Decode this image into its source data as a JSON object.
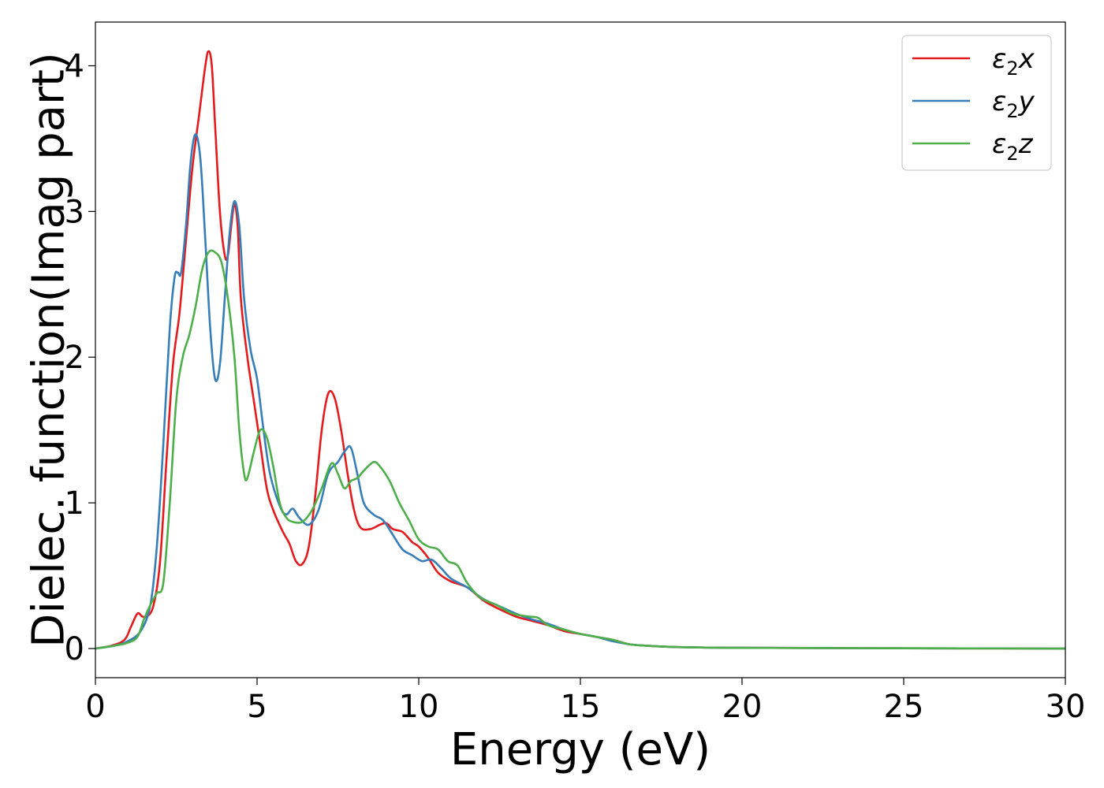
{
  "chart_data": {
    "type": "line",
    "xlabel": "Energy (eV)",
    "ylabel": "Dielec. function(Imag part)",
    "xlim": [
      0,
      30
    ],
    "ylim": [
      -0.2,
      4.3
    ],
    "xticks": [
      0,
      5,
      10,
      15,
      20,
      25,
      30
    ],
    "yticks": [
      0,
      1,
      2,
      3,
      4
    ],
    "grid": false,
    "legend_position": "top-right",
    "series": [
      {
        "name": "ε₂x",
        "label_base": "ε",
        "label_sub": "2",
        "label_suffix": "x",
        "color": "#e41a1c",
        "points": [
          [
            0,
            0
          ],
          [
            0.5,
            0.02
          ],
          [
            0.9,
            0.06
          ],
          [
            1.1,
            0.15
          ],
          [
            1.3,
            0.24
          ],
          [
            1.45,
            0.22
          ],
          [
            1.6,
            0.22
          ],
          [
            1.8,
            0.3
          ],
          [
            2.0,
            0.6
          ],
          [
            2.2,
            1.3
          ],
          [
            2.4,
            1.95
          ],
          [
            2.6,
            2.3
          ],
          [
            2.8,
            2.8
          ],
          [
            3.0,
            3.3
          ],
          [
            3.2,
            3.65
          ],
          [
            3.4,
            4.0
          ],
          [
            3.5,
            4.1
          ],
          [
            3.6,
            4.0
          ],
          [
            3.7,
            3.6
          ],
          [
            3.85,
            3.0
          ],
          [
            4.0,
            2.7
          ],
          [
            4.1,
            2.7
          ],
          [
            4.2,
            2.9
          ],
          [
            4.3,
            3.05
          ],
          [
            4.4,
            2.9
          ],
          [
            4.5,
            2.4
          ],
          [
            4.7,
            2.0
          ],
          [
            4.9,
            1.7
          ],
          [
            5.1,
            1.4
          ],
          [
            5.3,
            1.1
          ],
          [
            5.5,
            0.95
          ],
          [
            5.8,
            0.8
          ],
          [
            6.0,
            0.72
          ],
          [
            6.2,
            0.6
          ],
          [
            6.4,
            0.58
          ],
          [
            6.6,
            0.7
          ],
          [
            6.8,
            1.05
          ],
          [
            7.0,
            1.5
          ],
          [
            7.2,
            1.75
          ],
          [
            7.4,
            1.72
          ],
          [
            7.6,
            1.5
          ],
          [
            7.8,
            1.2
          ],
          [
            8.0,
            0.95
          ],
          [
            8.2,
            0.83
          ],
          [
            8.5,
            0.82
          ],
          [
            8.8,
            0.85
          ],
          [
            9.0,
            0.86
          ],
          [
            9.2,
            0.82
          ],
          [
            9.5,
            0.8
          ],
          [
            9.8,
            0.73
          ],
          [
            10.0,
            0.7
          ],
          [
            10.3,
            0.62
          ],
          [
            10.6,
            0.52
          ],
          [
            11.0,
            0.46
          ],
          [
            11.5,
            0.42
          ],
          [
            12.0,
            0.33
          ],
          [
            12.5,
            0.27
          ],
          [
            13.0,
            0.22
          ],
          [
            13.5,
            0.19
          ],
          [
            14.0,
            0.16
          ],
          [
            14.5,
            0.12
          ],
          [
            15.0,
            0.1
          ],
          [
            15.5,
            0.08
          ],
          [
            16.0,
            0.06
          ],
          [
            16.5,
            0.03
          ],
          [
            17.0,
            0.02
          ],
          [
            18.0,
            0.01
          ],
          [
            20.0,
            0.005
          ],
          [
            25.0,
            0.002
          ],
          [
            30.0,
            0
          ]
        ]
      },
      {
        "name": "ε₂y",
        "label_base": "ε",
        "label_sub": "2",
        "label_suffix": "y",
        "color": "#377eb8",
        "points": [
          [
            0,
            0
          ],
          [
            0.6,
            0.02
          ],
          [
            1.0,
            0.05
          ],
          [
            1.4,
            0.12
          ],
          [
            1.7,
            0.3
          ],
          [
            1.9,
            0.7
          ],
          [
            2.1,
            1.4
          ],
          [
            2.3,
            2.2
          ],
          [
            2.45,
            2.55
          ],
          [
            2.55,
            2.58
          ],
          [
            2.65,
            2.58
          ],
          [
            2.8,
            2.9
          ],
          [
            2.95,
            3.35
          ],
          [
            3.1,
            3.53
          ],
          [
            3.25,
            3.35
          ],
          [
            3.4,
            2.8
          ],
          [
            3.55,
            2.2
          ],
          [
            3.7,
            1.85
          ],
          [
            3.85,
            1.95
          ],
          [
            4.0,
            2.4
          ],
          [
            4.15,
            2.85
          ],
          [
            4.3,
            3.07
          ],
          [
            4.45,
            2.9
          ],
          [
            4.6,
            2.4
          ],
          [
            4.8,
            2.05
          ],
          [
            5.0,
            1.85
          ],
          [
            5.2,
            1.5
          ],
          [
            5.4,
            1.2
          ],
          [
            5.7,
            0.98
          ],
          [
            5.9,
            0.92
          ],
          [
            6.1,
            0.96
          ],
          [
            6.3,
            0.9
          ],
          [
            6.6,
            0.85
          ],
          [
            6.9,
            0.95
          ],
          [
            7.2,
            1.2
          ],
          [
            7.5,
            1.28
          ],
          [
            7.7,
            1.35
          ],
          [
            7.9,
            1.38
          ],
          [
            8.1,
            1.2
          ],
          [
            8.3,
            1.0
          ],
          [
            8.6,
            0.92
          ],
          [
            8.9,
            0.88
          ],
          [
            9.2,
            0.78
          ],
          [
            9.5,
            0.68
          ],
          [
            9.8,
            0.64
          ],
          [
            10.1,
            0.6
          ],
          [
            10.4,
            0.61
          ],
          [
            10.7,
            0.55
          ],
          [
            11.0,
            0.48
          ],
          [
            11.5,
            0.42
          ],
          [
            12.0,
            0.34
          ],
          [
            12.5,
            0.29
          ],
          [
            13.0,
            0.24
          ],
          [
            13.5,
            0.2
          ],
          [
            14.0,
            0.17
          ],
          [
            14.5,
            0.13
          ],
          [
            15.0,
            0.1
          ],
          [
            15.5,
            0.08
          ],
          [
            16.0,
            0.05
          ],
          [
            16.5,
            0.03
          ],
          [
            17.0,
            0.02
          ],
          [
            18.0,
            0.01
          ],
          [
            20.0,
            0.005
          ],
          [
            25.0,
            0.002
          ],
          [
            30.0,
            0
          ]
        ]
      },
      {
        "name": "ε₂z",
        "label_base": "ε",
        "label_sub": "2",
        "label_suffix": "z",
        "color": "#4daf4a",
        "points": [
          [
            0,
            0
          ],
          [
            0.6,
            0.02
          ],
          [
            1.0,
            0.04
          ],
          [
            1.3,
            0.08
          ],
          [
            1.5,
            0.2
          ],
          [
            1.7,
            0.3
          ],
          [
            1.9,
            0.38
          ],
          [
            2.1,
            0.45
          ],
          [
            2.3,
            1.0
          ],
          [
            2.5,
            1.7
          ],
          [
            2.7,
            2.0
          ],
          [
            2.9,
            2.15
          ],
          [
            3.1,
            2.35
          ],
          [
            3.3,
            2.6
          ],
          [
            3.5,
            2.72
          ],
          [
            3.7,
            2.72
          ],
          [
            3.9,
            2.65
          ],
          [
            4.1,
            2.4
          ],
          [
            4.3,
            2.0
          ],
          [
            4.45,
            1.5
          ],
          [
            4.6,
            1.2
          ],
          [
            4.7,
            1.17
          ],
          [
            4.9,
            1.35
          ],
          [
            5.1,
            1.5
          ],
          [
            5.3,
            1.45
          ],
          [
            5.5,
            1.25
          ],
          [
            5.7,
            1.0
          ],
          [
            5.9,
            0.9
          ],
          [
            6.1,
            0.87
          ],
          [
            6.4,
            0.87
          ],
          [
            6.7,
            0.95
          ],
          [
            7.0,
            1.1
          ],
          [
            7.3,
            1.27
          ],
          [
            7.5,
            1.2
          ],
          [
            7.7,
            1.1
          ],
          [
            7.9,
            1.15
          ],
          [
            8.1,
            1.17
          ],
          [
            8.3,
            1.22
          ],
          [
            8.6,
            1.28
          ],
          [
            8.8,
            1.25
          ],
          [
            9.1,
            1.15
          ],
          [
            9.4,
            1.0
          ],
          [
            9.7,
            0.88
          ],
          [
            10.0,
            0.75
          ],
          [
            10.3,
            0.7
          ],
          [
            10.6,
            0.68
          ],
          [
            10.9,
            0.6
          ],
          [
            11.2,
            0.57
          ],
          [
            11.5,
            0.45
          ],
          [
            11.9,
            0.35
          ],
          [
            12.4,
            0.3
          ],
          [
            12.9,
            0.24
          ],
          [
            13.4,
            0.22
          ],
          [
            13.7,
            0.21
          ],
          [
            14.0,
            0.16
          ],
          [
            14.5,
            0.13
          ],
          [
            15.0,
            0.1
          ],
          [
            15.5,
            0.08
          ],
          [
            16.0,
            0.06
          ],
          [
            16.5,
            0.03
          ],
          [
            17.0,
            0.02
          ],
          [
            18.0,
            0.01
          ],
          [
            20.0,
            0.005
          ],
          [
            25.0,
            0.002
          ],
          [
            30.0,
            0
          ]
        ]
      }
    ]
  }
}
